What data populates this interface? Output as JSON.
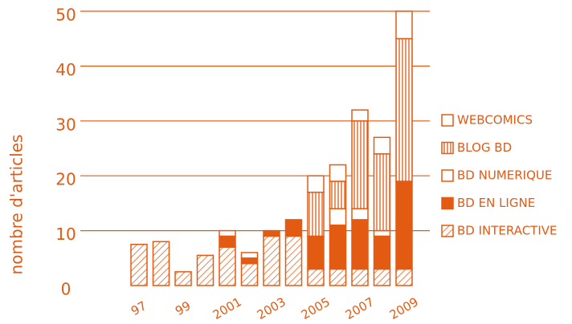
{
  "chart_data": {
    "type": "stacked-bar",
    "y_label": "nombre d'articles",
    "categories": [
      "97",
      null,
      "99",
      null,
      "2001",
      null,
      "2003",
      null,
      "2005",
      null,
      "2007",
      null,
      "2009"
    ],
    "series": [
      {
        "name": "BD INTERACTIVE",
        "color": "#e35a12",
        "pattern": "hatch",
        "values": [
          7.5,
          8,
          2.5,
          5.5,
          7,
          4,
          9,
          9,
          3,
          3,
          3,
          3,
          3
        ]
      },
      {
        "name": "BD EN LIGNE",
        "color": "#e35a12",
        "pattern": "solid",
        "values": [
          0,
          0,
          0,
          0,
          2,
          1,
          1,
          3,
          6,
          8,
          9,
          6,
          16
        ]
      },
      {
        "name": "BD NUMERIQUE",
        "color": "#e35a12",
        "pattern": "empty",
        "values": [
          0,
          0,
          0,
          0,
          1,
          1,
          0,
          0,
          0,
          3,
          2,
          1,
          0
        ]
      },
      {
        "name": "BLOG BD",
        "color": "#e35a12",
        "pattern": "stripes",
        "values": [
          0,
          0,
          0,
          0,
          0,
          0,
          0,
          0,
          8,
          5,
          16,
          14,
          26
        ]
      },
      {
        "name": "WEBCOMICS",
        "color": "#e35a12",
        "pattern": "box",
        "values": [
          0,
          0,
          0,
          0,
          0,
          0,
          0,
          0,
          3,
          3,
          2,
          3,
          5
        ]
      }
    ],
    "ylim": [
      0,
      50
    ],
    "yticks": [
      0,
      10,
      20,
      30,
      40,
      50
    ],
    "grid": true,
    "legend": "right"
  }
}
